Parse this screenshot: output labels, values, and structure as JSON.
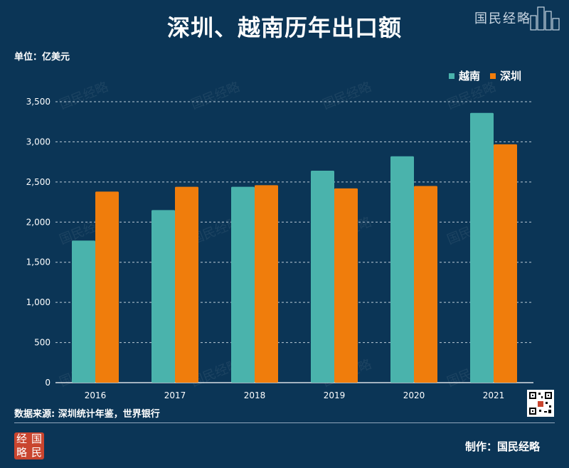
{
  "header": {
    "title": "深圳、越南历年出口额",
    "brand": "国民经略"
  },
  "unit_label": "单位：亿美元",
  "legend": {
    "vietnam": "越南",
    "shenzhen": "深圳"
  },
  "colors": {
    "vietnam": "#4ab3ac",
    "shenzhen": "#f07d0c",
    "background": "#0b3556"
  },
  "footer": {
    "source": "数据来源: 深圳统计年鉴，世界银行",
    "maker": "制作：国民经略",
    "logo_chars": [
      "经",
      "国",
      "略",
      "民"
    ]
  },
  "watermark": "国民经略",
  "chart_data": {
    "type": "bar",
    "title": "深圳、越南历年出口额",
    "ylabel": "亿美元",
    "xlabel": "",
    "ylim": [
      0,
      3500
    ],
    "yticks": [
      0,
      500,
      1000,
      1500,
      2000,
      2500,
      3000,
      3500
    ],
    "ytick_labels": [
      "0",
      "500",
      "1,000",
      "1,500",
      "2,000",
      "2,500",
      "3,000",
      "3,500"
    ],
    "categories": [
      "2016",
      "2017",
      "2018",
      "2019",
      "2020",
      "2021"
    ],
    "series": [
      {
        "name": "越南",
        "values": [
          1770,
          2150,
          2440,
          2640,
          2820,
          3360
        ]
      },
      {
        "name": "深圳",
        "values": [
          2380,
          2440,
          2460,
          2420,
          2450,
          2970
        ]
      }
    ],
    "grid": true,
    "legend_position": "top-right"
  }
}
